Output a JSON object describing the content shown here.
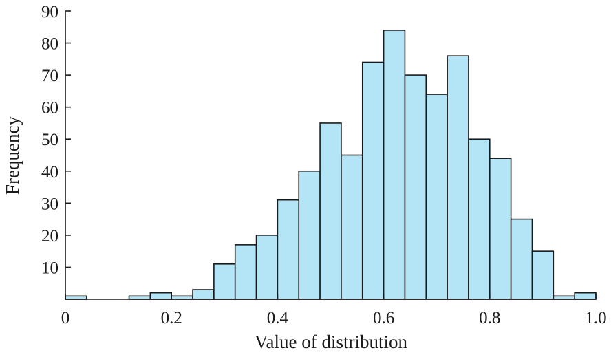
{
  "chart_data": {
    "type": "bar",
    "subtype": "histogram",
    "xlabel": "Value of distribution",
    "ylabel": "Frequency",
    "xlim": [
      0,
      1.0
    ],
    "ylim": [
      0,
      90
    ],
    "bin_width": 0.04,
    "bins": [
      {
        "x0": 0.0,
        "x1": 0.04,
        "value": 1
      },
      {
        "x0": 0.04,
        "x1": 0.08,
        "value": 0
      },
      {
        "x0": 0.08,
        "x1": 0.12,
        "value": 0
      },
      {
        "x0": 0.12,
        "x1": 0.16,
        "value": 1
      },
      {
        "x0": 0.16,
        "x1": 0.2,
        "value": 2
      },
      {
        "x0": 0.2,
        "x1": 0.24,
        "value": 1
      },
      {
        "x0": 0.24,
        "x1": 0.28,
        "value": 3
      },
      {
        "x0": 0.28,
        "x1": 0.32,
        "value": 11
      },
      {
        "x0": 0.32,
        "x1": 0.36,
        "value": 17
      },
      {
        "x0": 0.36,
        "x1": 0.4,
        "value": 20
      },
      {
        "x0": 0.4,
        "x1": 0.44,
        "value": 31
      },
      {
        "x0": 0.44,
        "x1": 0.48,
        "value": 40
      },
      {
        "x0": 0.48,
        "x1": 0.52,
        "value": 55
      },
      {
        "x0": 0.52,
        "x1": 0.56,
        "value": 45
      },
      {
        "x0": 0.56,
        "x1": 0.6,
        "value": 74
      },
      {
        "x0": 0.6,
        "x1": 0.64,
        "value": 84
      },
      {
        "x0": 0.64,
        "x1": 0.68,
        "value": 70
      },
      {
        "x0": 0.68,
        "x1": 0.72,
        "value": 64
      },
      {
        "x0": 0.72,
        "x1": 0.76,
        "value": 76
      },
      {
        "x0": 0.76,
        "x1": 0.8,
        "value": 50
      },
      {
        "x0": 0.8,
        "x1": 0.84,
        "value": 44
      },
      {
        "x0": 0.84,
        "x1": 0.88,
        "value": 25
      },
      {
        "x0": 0.88,
        "x1": 0.92,
        "value": 15
      },
      {
        "x0": 0.92,
        "x1": 0.96,
        "value": 1
      },
      {
        "x0": 0.96,
        "x1": 1.0,
        "value": 2
      }
    ],
    "x_ticks": [
      {
        "value": 0,
        "label": "0"
      },
      {
        "value": 0.2,
        "label": "0.2"
      },
      {
        "value": 0.4,
        "label": "0.4"
      },
      {
        "value": 0.6,
        "label": "0.6"
      },
      {
        "value": 0.8,
        "label": "0.8"
      },
      {
        "value": 1.0,
        "label": "1.0"
      }
    ],
    "y_ticks": [
      {
        "value": 10,
        "label": "10"
      },
      {
        "value": 20,
        "label": "20"
      },
      {
        "value": 30,
        "label": "30"
      },
      {
        "value": 40,
        "label": "40"
      },
      {
        "value": 50,
        "label": "50"
      },
      {
        "value": 60,
        "label": "60"
      },
      {
        "value": 70,
        "label": "70"
      },
      {
        "value": 80,
        "label": "80"
      },
      {
        "value": 90,
        "label": "90"
      }
    ],
    "grid": false,
    "legend": "none",
    "colors": {
      "bar_fill": "#b3e5f7",
      "bar_edge": "#1a1a1a",
      "axis": "#1a1a1a"
    }
  }
}
